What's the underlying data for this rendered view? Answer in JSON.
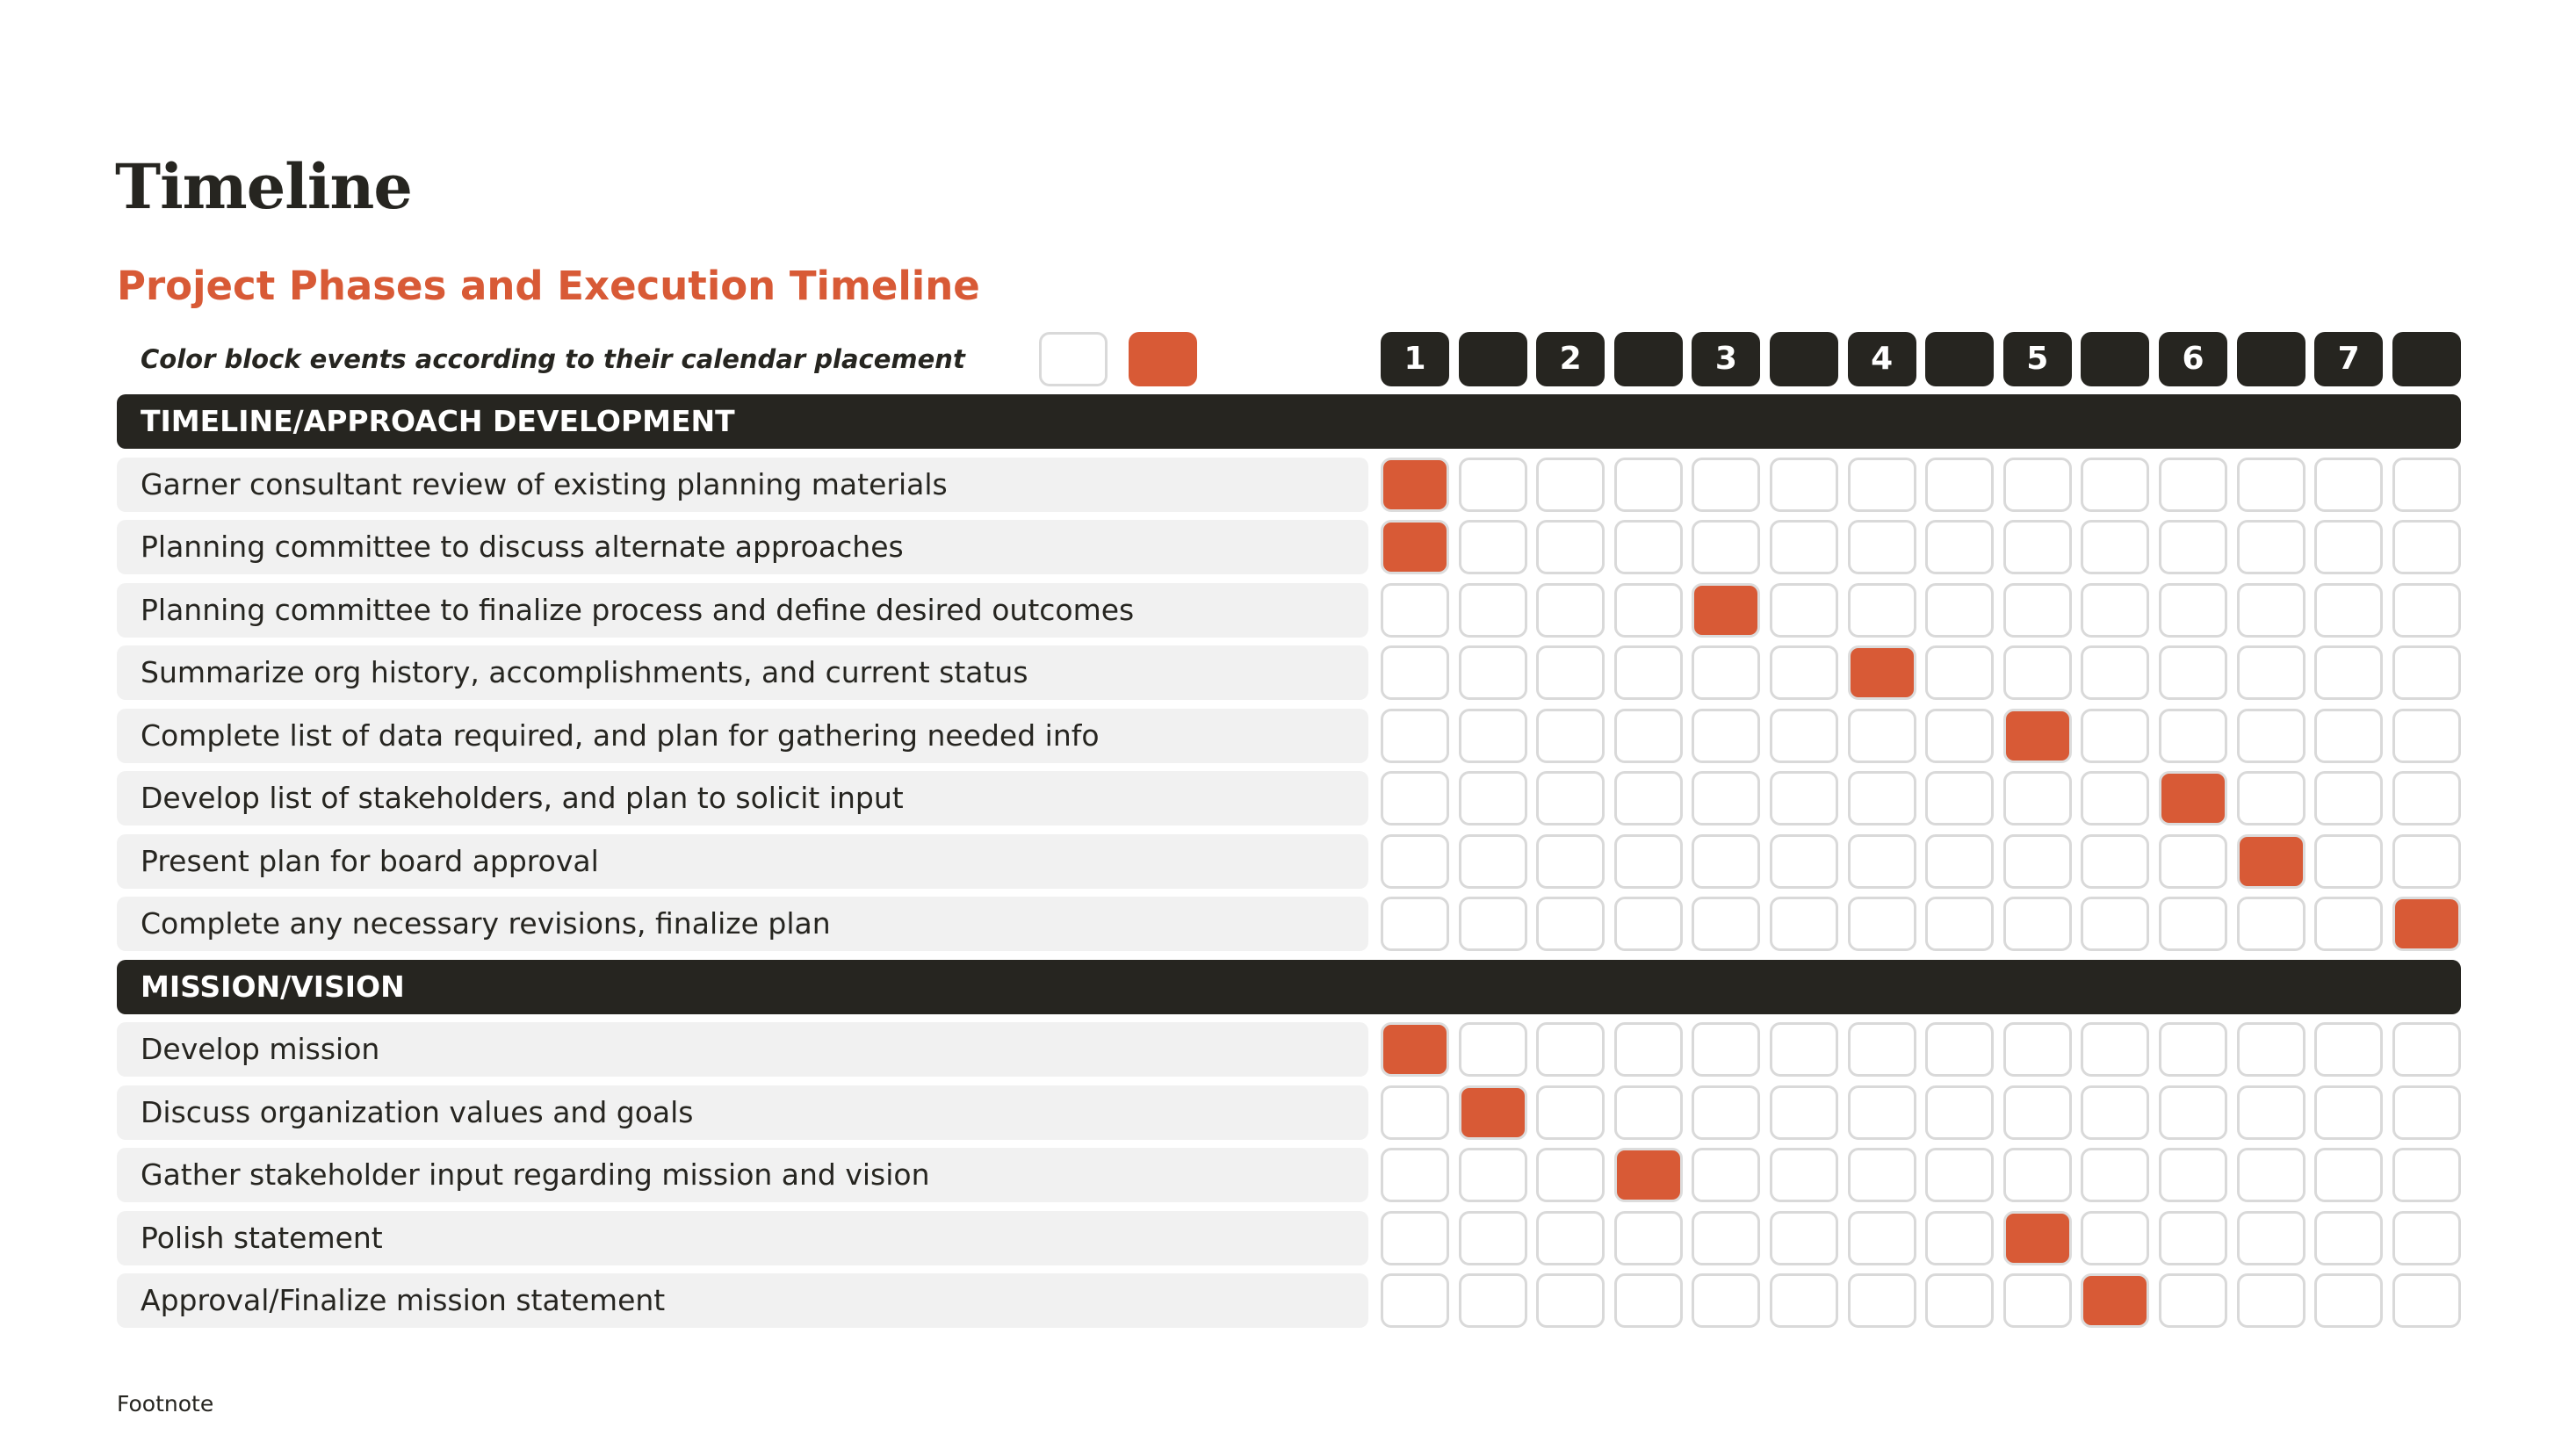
{
  "header": {
    "title": "Timeline",
    "subtitle": "Project Phases and Execution Timeline",
    "instruction": "Color block events according to their calendar placement"
  },
  "legend": {
    "empty_label": "empty block",
    "filled_label": "filled block"
  },
  "colors": {
    "accent": "#D85A36",
    "dark": "#262520",
    "cell_border": "#D9D9D9",
    "label_bg": "#F1F1F1"
  },
  "columns": [
    "1",
    "",
    "2",
    "",
    "3",
    "",
    "4",
    "",
    "5",
    "",
    "6",
    "",
    "7",
    ""
  ],
  "sections": [
    {
      "title": "TIMELINE/APPROACH DEVELOPMENT",
      "tasks": [
        {
          "label": "Garner consultant review of existing planning materials",
          "filled_col": 0
        },
        {
          "label": "Planning committee to discuss alternate approaches",
          "filled_col": 0
        },
        {
          "label": "Planning committee to finalize process and define desired outcomes",
          "filled_col": 4
        },
        {
          "label": "Summarize org history, accomplishments, and current status",
          "filled_col": 6
        },
        {
          "label": "Complete list of data required, and plan for gathering needed info",
          "filled_col": 8
        },
        {
          "label": "Develop list of stakeholders, and plan to solicit input",
          "filled_col": 10
        },
        {
          "label": "Present plan for board approval",
          "filled_col": 11
        },
        {
          "label": "Complete any necessary revisions, finalize plan",
          "filled_col": 13
        }
      ]
    },
    {
      "title": "MISSION/VISION",
      "tasks": [
        {
          "label": "Develop mission",
          "filled_col": 0
        },
        {
          "label": "Discuss organization values and goals",
          "filled_col": 1
        },
        {
          "label": "Gather stakeholder input regarding mission and vision",
          "filled_col": 3
        },
        {
          "label": "Polish statement",
          "filled_col": 8
        },
        {
          "label": "Approval/Finalize mission statement",
          "filled_col": 9
        }
      ]
    }
  ],
  "footnote": "Footnote"
}
